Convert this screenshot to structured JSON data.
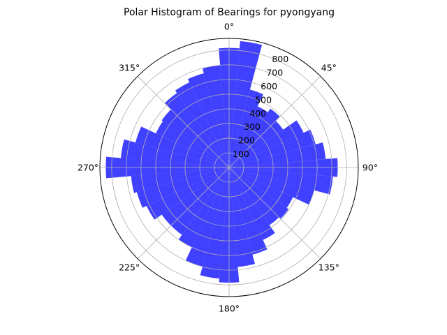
{
  "chart_data": {
    "type": "polar-bar",
    "title": "Polar Histogram of Bearings for pyongyang",
    "theta_zero": "N",
    "theta_direction": "clockwise",
    "bin_width_deg": 10,
    "angle_ticks": [
      "0°",
      "45°",
      "90°",
      "135°",
      "180°",
      "225°",
      "270°",
      "315°"
    ],
    "radial_ticks": [
      100,
      200,
      300,
      400,
      500,
      600,
      700,
      800
    ],
    "rlim": [
      0,
      880
    ],
    "grid": true,
    "bar_color": "#0000ff",
    "bar_alpha": 0.75,
    "bins_deg": [
      0,
      10,
      20,
      30,
      40,
      50,
      60,
      70,
      80,
      90,
      100,
      110,
      120,
      130,
      140,
      150,
      160,
      170,
      180,
      190,
      200,
      210,
      220,
      230,
      240,
      250,
      260,
      270,
      280,
      290,
      300,
      310,
      320,
      330,
      340,
      350
    ],
    "values": [
      815,
      865,
      550,
      460,
      490,
      450,
      560,
      610,
      660,
      740,
      710,
      600,
      480,
      495,
      480,
      545,
      615,
      680,
      785,
      760,
      700,
      600,
      560,
      560,
      620,
      650,
      670,
      840,
      740,
      660,
      550,
      560,
      620,
      640,
      665,
      700
    ]
  }
}
